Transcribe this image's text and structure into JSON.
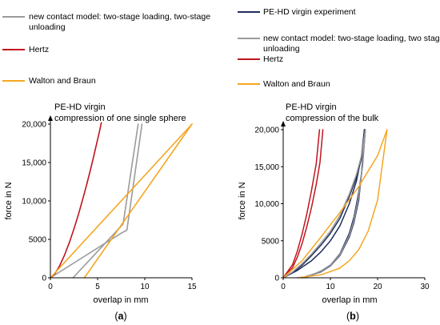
{
  "chart_data": [
    {
      "type": "line",
      "panel": "(a)",
      "panel_letter": "a",
      "title": "PE-HD virgin",
      "subtitle": "compression of one single sphere",
      "xlabel": "overlap in mm",
      "ylabel": "force in N",
      "xlim": [
        0,
        15
      ],
      "ylim": [
        0,
        20000
      ],
      "xticks": [
        "0",
        "5",
        "10",
        "15"
      ],
      "yticks": [
        "0",
        "5000",
        "10,000",
        "15,000",
        "20,000"
      ],
      "legend": [
        {
          "label": "new contact model: two-stage loading, two-stage unloading",
          "lines": [
            "new contact model: two-stage loading, two-stage",
            "unloading"
          ],
          "color": "#9b9b9b"
        },
        {
          "label": "Hertz",
          "lines": [
            "Hertz"
          ],
          "color": "#c0151f"
        },
        {
          "label": "Walton and Braun",
          "lines": [
            "Walton and Braun"
          ],
          "color": "#f5a623"
        }
      ],
      "series": [
        {
          "label": "new contact model: two-stage loading, two-stage unloading",
          "color": "#9b9b9b",
          "width": 1.6,
          "x": [
            0,
            7.5,
            8.1,
            9.7
          ],
          "y": [
            0,
            5800,
            6200,
            20000
          ]
        },
        {
          "label": "new contact model: two-stage loading, two-stage unloading",
          "color": "#9b9b9b",
          "width": 1.6,
          "x": [
            2.4,
            7.7,
            9.3
          ],
          "y": [
            0,
            7000,
            20000
          ]
        },
        {
          "label": "Hertz",
          "color": "#c0151f",
          "width": 1.6,
          "x": [
            0,
            0.5,
            1.0,
            1.5,
            2.0,
            2.5,
            3.0,
            3.5,
            3.9
          ],
          "y": [
            0,
            570,
            1610,
            2960,
            4560,
            6370,
            8370,
            10550,
            12390
          ]
        },
        {
          "label": "Hertz",
          "color": "#c0151f",
          "width": 1.6,
          "x": [
            3.9,
            4.2,
            4.5,
            4.8,
            5.0,
            5.2,
            5.4
          ],
          "y": [
            12390,
            13850,
            15360,
            16920,
            17990,
            19070,
            20180
          ]
        },
        {
          "label": "Walton and Braun",
          "color": "#f5a623",
          "width": 1.6,
          "x": [
            0,
            15
          ],
          "y": [
            0,
            20000
          ]
        },
        {
          "label": "Walton and Braun",
          "color": "#f5a623",
          "width": 1.6,
          "x": [
            3.6,
            15
          ],
          "y": [
            0,
            20000
          ]
        }
      ]
    },
    {
      "type": "line",
      "panel": "(b)",
      "panel_letter": "b",
      "title": "PE-HD virgin",
      "subtitle": "compression of the bulk",
      "xlabel": "overlap in mm",
      "ylabel": "force in N",
      "xlim": [
        0,
        30
      ],
      "ylim": [
        0,
        20000
      ],
      "xticks": [
        "0",
        "10",
        "20",
        "30"
      ],
      "yticks": [
        "0",
        "5000",
        "10,000",
        "15,000",
        "20,000"
      ],
      "legend": [
        {
          "label": "PE-HD virgin experiment",
          "lines": [
            "PE-HD virgin experiment"
          ],
          "color": "#1f2d5c"
        },
        {
          "label": "new contact model: two-stage loading, two stage unloading",
          "lines": [
            "new contact model: two-stage loading, two stage",
            "unloading"
          ],
          "color": "#9b9b9b"
        },
        {
          "label": "Hertz",
          "lines": [
            "Hertz"
          ],
          "color": "#c0151f"
        },
        {
          "label": "Walton and Braun",
          "lines": [
            "Walton and Braun"
          ],
          "color": "#f5a623"
        }
      ],
      "series": [
        {
          "label": "PE-HD virgin experiment",
          "color": "#1f2d5c",
          "width": 1.5,
          "x": [
            0,
            2,
            4,
            6,
            8,
            10,
            12,
            14,
            15.5,
            16.5,
            17.2
          ],
          "y": [
            0,
            700,
            1700,
            3000,
            4400,
            6000,
            8000,
            11000,
            13500,
            16000,
            20000
          ]
        },
        {
          "label": "PE-HD virgin experiment",
          "color": "#1f2d5c",
          "width": 1.5,
          "x": [
            4.0,
            8,
            10,
            12,
            14,
            15,
            16,
            16.6,
            17.2
          ],
          "y": [
            0,
            800,
            1600,
            3000,
            5500,
            7500,
            10500,
            14000,
            20000
          ]
        },
        {
          "label": "PE-HD virgin experiment",
          "color": "#1f2d5c",
          "width": 1.5,
          "x": [
            0,
            3,
            6,
            8,
            10,
            12,
            14,
            15.5,
            16.6,
            17.3
          ],
          "y": [
            0,
            1000,
            2300,
            3500,
            5000,
            7000,
            10000,
            13000,
            16500,
            20000
          ]
        },
        {
          "label": "PE-HD virgin experiment",
          "color": "#1f2d5c",
          "width": 1.5,
          "x": [
            4.6,
            8,
            10,
            12,
            14,
            15,
            16,
            16.8,
            17.4
          ],
          "y": [
            0,
            900,
            1700,
            3200,
            6000,
            8200,
            11500,
            15000,
            20000
          ]
        },
        {
          "label": "new contact model: two-stage loading, two stage unloading",
          "color": "#9b9b9b",
          "width": 1.5,
          "x": [
            0,
            2,
            4,
            6,
            8,
            10,
            12,
            14,
            15.5,
            16.6,
            17.4
          ],
          "y": [
            0,
            800,
            1900,
            3200,
            4700,
            6300,
            8400,
            11300,
            13900,
            16500,
            20000
          ]
        },
        {
          "label": "new contact model: two-stage loading, two stage unloading",
          "color": "#9b9b9b",
          "width": 1.5,
          "x": [
            4.2,
            8,
            10,
            12,
            14,
            15,
            16,
            16.7,
            17.4
          ],
          "y": [
            0,
            850,
            1650,
            3100,
            5700,
            7800,
            11000,
            14500,
            20000
          ]
        },
        {
          "label": "Hertz",
          "color": "#c0151f",
          "width": 1.5,
          "x": [
            0,
            2,
            3,
            4,
            5,
            6,
            7,
            7.7
          ],
          "y": [
            0,
            1800,
            3600,
            5900,
            8600,
            11800,
            15400,
            20000
          ]
        },
        {
          "label": "Hertz",
          "color": "#c0151f",
          "width": 1.5,
          "x": [
            0,
            2,
            3,
            4,
            5,
            6,
            7,
            7.8,
            8.4
          ],
          "y": [
            0,
            1400,
            2800,
            4600,
            6900,
            9500,
            12600,
            15600,
            20000
          ]
        },
        {
          "label": "Walton and Braun",
          "color": "#f5a623",
          "width": 1.5,
          "x": [
            0,
            4,
            8,
            12,
            16,
            20,
            22
          ],
          "y": [
            0,
            2300,
            5500,
            8800,
            12300,
            16500,
            20000
          ]
        },
        {
          "label": "Walton and Braun",
          "color": "#f5a623",
          "width": 1.5,
          "x": [
            3.0,
            8,
            12,
            14,
            16,
            18,
            20,
            22
          ],
          "y": [
            0,
            400,
            1300,
            2300,
            3800,
            6300,
            10500,
            20000
          ]
        }
      ]
    }
  ]
}
